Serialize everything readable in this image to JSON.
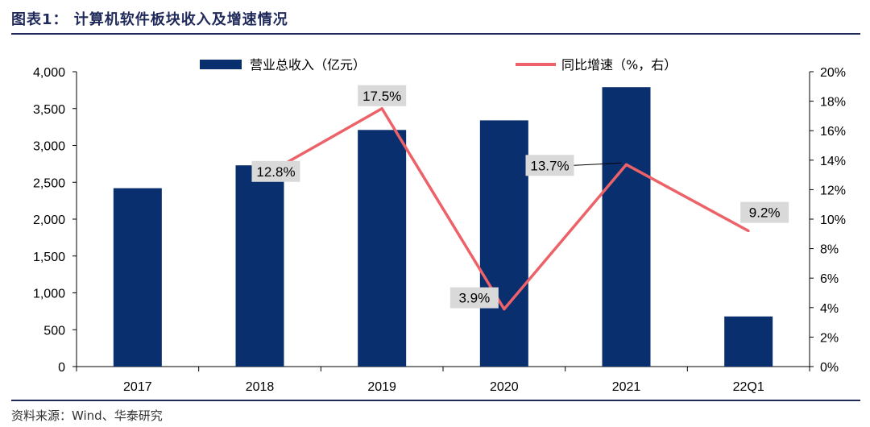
{
  "figure": {
    "title": "图表1：  计算机软件板块收入及增速情况",
    "source": "资料来源：Wind、华泰研究"
  },
  "colors": {
    "bar": "#0a2f6e",
    "line": "#ec6268",
    "label_bg": "#d9d9d9",
    "rule": "#1f2a5a"
  },
  "chart_data": {
    "type": "bar",
    "categories": [
      "2017",
      "2018",
      "2019",
      "2020",
      "2021",
      "22Q1"
    ],
    "series": [
      {
        "name": "营业总收入（亿元）",
        "type": "bar",
        "axis": "left",
        "values": [
          2420,
          2730,
          3210,
          3340,
          3790,
          680
        ]
      },
      {
        "name": "同比增速（%，右）",
        "type": "line",
        "axis": "right",
        "values": [
          null,
          12.8,
          17.5,
          3.9,
          13.7,
          9.2
        ],
        "labels": [
          "",
          "12.8%",
          "17.5%",
          "3.9%",
          "13.7%",
          "9.2%"
        ]
      }
    ],
    "ylim": [
      0,
      4000
    ],
    "yticks": [
      "0",
      "500",
      "1,000",
      "1,500",
      "2,000",
      "2,500",
      "3,000",
      "3,500",
      "4,000"
    ],
    "y2lim": [
      0,
      20
    ],
    "y2ticks": [
      "0%",
      "2%",
      "4%",
      "6%",
      "8%",
      "10%",
      "12%",
      "14%",
      "16%",
      "18%",
      "20%"
    ],
    "legend_position": "top",
    "grid": false
  }
}
